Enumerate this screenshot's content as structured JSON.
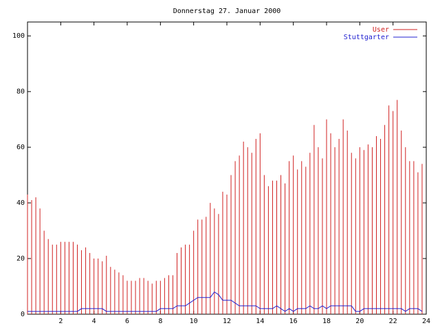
{
  "chart_data": {
    "type": "impulse-line",
    "title": "Donnerstag 27. Januar 2000",
    "x": [
      0,
      0.25,
      0.5,
      0.75,
      1,
      1.25,
      1.5,
      1.75,
      2,
      2.25,
      2.5,
      2.75,
      3,
      3.25,
      3.5,
      3.75,
      4,
      4.25,
      4.5,
      4.75,
      5,
      5.25,
      5.5,
      5.75,
      6,
      6.25,
      6.5,
      6.75,
      7,
      7.25,
      7.5,
      7.75,
      8,
      8.25,
      8.5,
      8.75,
      9,
      9.25,
      9.5,
      9.75,
      10,
      10.25,
      10.5,
      10.75,
      11,
      11.25,
      11.5,
      11.75,
      12,
      12.25,
      12.5,
      12.75,
      13,
      13.25,
      13.5,
      13.75,
      14,
      14.25,
      14.5,
      14.75,
      15,
      15.25,
      15.5,
      15.75,
      16,
      16.25,
      16.5,
      16.75,
      17,
      17.25,
      17.5,
      17.75,
      18,
      18.25,
      18.5,
      18.75,
      19,
      19.25,
      19.5,
      19.75,
      20,
      20.25,
      20.5,
      20.75,
      21,
      21.25,
      21.5,
      21.75,
      22,
      22.25,
      22.5,
      22.75,
      23,
      23.25,
      23.5,
      23.75
    ],
    "series": [
      {
        "name": "User",
        "color": "#d02020",
        "style": "impulses",
        "values": [
          43,
          41,
          42,
          38,
          30,
          27,
          25,
          25,
          26,
          26,
          26,
          26,
          25,
          23,
          24,
          22,
          20,
          20,
          19,
          21,
          17,
          16,
          15,
          14,
          12,
          12,
          12,
          13,
          13,
          12,
          11,
          12,
          12,
          13,
          14,
          14,
          22,
          24,
          25,
          25,
          30,
          34,
          34,
          35,
          40,
          38,
          36,
          44,
          43,
          50,
          55,
          57,
          62,
          60,
          58,
          63,
          65,
          50,
          46,
          48,
          48,
          50,
          47,
          55,
          57,
          52,
          55,
          53,
          58,
          68,
          60,
          56,
          70,
          65,
          60,
          63,
          70,
          66,
          58,
          56,
          60,
          59,
          61,
          60,
          64,
          63,
          68,
          75,
          73,
          77,
          66,
          60,
          55,
          55,
          51,
          54
        ]
      },
      {
        "name": "Stuttgarter",
        "color": "#2020d0",
        "style": "line",
        "values": [
          1,
          1,
          1,
          1,
          1,
          1,
          1,
          1,
          1,
          1,
          1,
          1,
          1,
          2,
          2,
          2,
          2,
          2,
          2,
          1,
          1,
          1,
          1,
          1,
          1,
          1,
          1,
          1,
          1,
          1,
          1,
          1,
          2,
          2,
          2,
          2,
          3,
          3,
          3,
          4,
          5,
          6,
          6,
          6,
          6,
          8,
          7,
          5,
          5,
          5,
          4,
          3,
          3,
          3,
          3,
          3,
          2,
          2,
          2,
          2,
          3,
          2,
          1,
          2,
          1,
          2,
          2,
          2,
          3,
          2,
          2,
          3,
          2,
          3,
          3,
          3,
          3,
          3,
          3,
          1,
          1,
          2,
          2,
          2,
          2,
          2,
          2,
          2,
          2,
          2,
          2,
          1,
          2,
          2,
          2,
          1
        ]
      }
    ],
    "xlim": [
      0,
      24
    ],
    "xticks": [
      2,
      4,
      6,
      8,
      10,
      12,
      14,
      16,
      18,
      20,
      22,
      24
    ],
    "ylim": [
      0,
      105
    ],
    "yticks": [
      0,
      20,
      40,
      60,
      80,
      100
    ],
    "legend": "top-right"
  }
}
